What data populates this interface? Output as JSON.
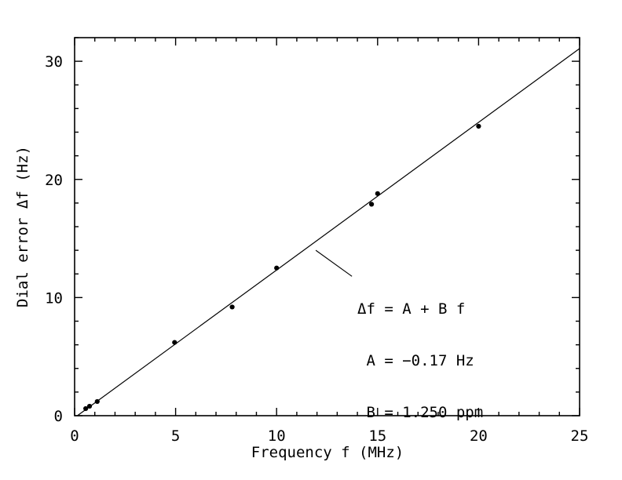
{
  "figure": {
    "background_color": "#ffffff",
    "ink_color": "#000000"
  },
  "chart_data": {
    "type": "scatter",
    "title": "",
    "xlabel": "Frequency f (MHz)",
    "ylabel": "Dial error Δf (Hz)",
    "xlim": [
      0,
      25
    ],
    "ylim": [
      0,
      32
    ],
    "x_major_ticks": [
      0,
      5,
      10,
      15,
      20,
      25
    ],
    "x_minor_step": 1,
    "y_major_ticks": [
      0,
      10,
      20,
      30
    ],
    "y_minor_step": 2,
    "grid": false,
    "legend": "none",
    "marker": "filled-circle",
    "points": [
      [
        0.55,
        0.6
      ],
      [
        0.74,
        0.8
      ],
      [
        1.12,
        1.2
      ],
      [
        4.95,
        6.2
      ],
      [
        7.8,
        9.2
      ],
      [
        10.0,
        12.5
      ],
      [
        14.7,
        17.9
      ],
      [
        15.0,
        18.8
      ],
      [
        20.0,
        24.5
      ]
    ],
    "fit": {
      "model": "Δf = A + B f",
      "A_hz": -0.17,
      "B_ppm": 1.25,
      "line_span_mhz": [
        0.136,
        25
      ]
    },
    "annotation": {
      "lines": [
        "Δf = A + B f",
        " A = −0.17 Hz",
        " B = 1.250 ppm"
      ],
      "leader": {
        "from_f_df": [
          11.94,
          14.0
        ],
        "to_f_df": [
          13.73,
          11.8
        ]
      }
    }
  }
}
